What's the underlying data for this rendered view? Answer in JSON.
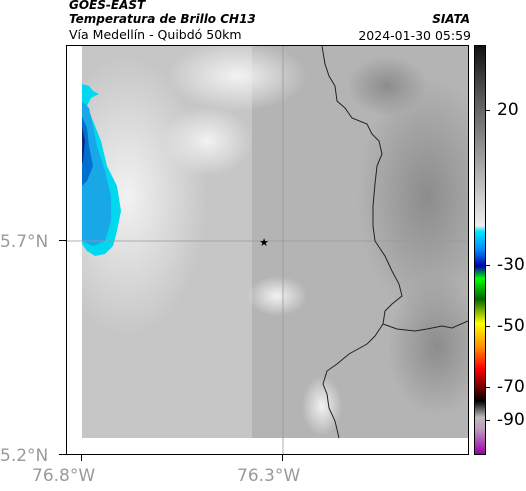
{
  "header": {
    "source": "GOES-EAST",
    "product": "Temperatura de Brillo CH13",
    "route": "Vía Medellín - Quibdó 50km",
    "org": "SIATA",
    "timestamp": "2024-01-30 05:59"
  },
  "map": {
    "y_ticks": [
      {
        "label": "5.7°N"
      },
      {
        "label": "5.2°N"
      }
    ],
    "x_ticks": [
      {
        "label": "76.8°W"
      },
      {
        "label": "76.3°W"
      }
    ],
    "marker": {
      "symbol": "★"
    }
  },
  "colorbar": {
    "ticks": [
      {
        "label": "20"
      },
      {
        "label": "-30"
      },
      {
        "label": "-50"
      },
      {
        "label": "-70"
      },
      {
        "label": "-90"
      }
    ],
    "colors": [
      "#111111",
      "#444444",
      "#888888",
      "#bbbbbb",
      "#e8e8e8",
      "#00e5ff",
      "#0088ff",
      "#0000aa",
      "#00ff00",
      "#006600",
      "#ffff00",
      "#ff8800",
      "#ff0000",
      "#880000",
      "#000000",
      "#bb99bb",
      "#9900aa"
    ]
  }
}
